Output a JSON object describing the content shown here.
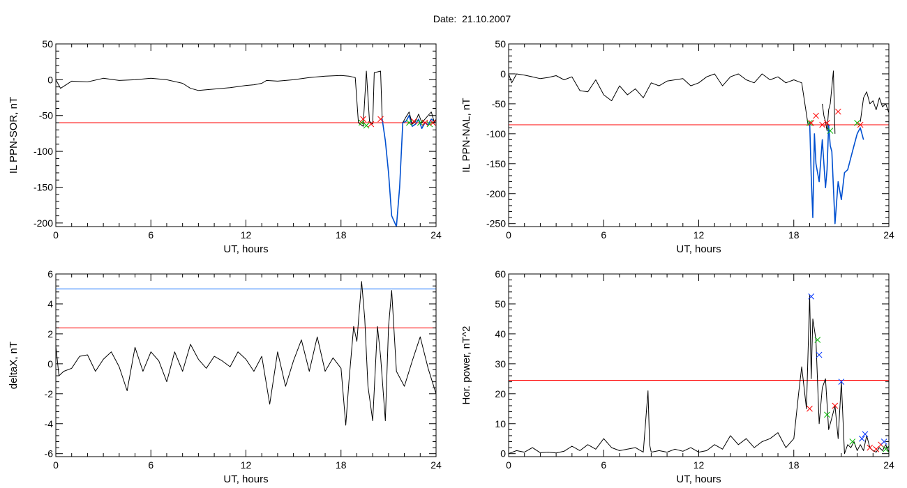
{
  "title": "Date:  21.10.2007",
  "colors": {
    "trace": "#000000",
    "threshold_red": "#ff0000",
    "threshold_blue": "#0066ff",
    "segment_blue": "#0050d0",
    "marker_green": "#00b800",
    "marker_red": "#ff0000",
    "marker_blue": "#0033ff"
  },
  "chart_data": [
    {
      "id": "sor",
      "type": "line",
      "xlabel": "UT, hours",
      "ylabel": "IL PPN-SOR, nT",
      "xlim": [
        0,
        24
      ],
      "ylim": [
        -205,
        50
      ],
      "xticks": [
        0,
        6,
        12,
        18,
        24
      ],
      "xtick_labels": [
        "0",
        "6",
        "12",
        "18",
        "24"
      ],
      "yticks": [
        50,
        0,
        -50,
        -100,
        -150,
        -200
      ],
      "ytick_labels": [
        "50",
        "0",
        "-50",
        "-100",
        "-150",
        "-200"
      ],
      "grid": false,
      "series": [
        {
          "style": "black",
          "x": [
            0,
            0.3,
            1,
            2,
            3,
            4,
            5,
            6,
            7,
            8,
            8.5,
            9,
            9.5,
            10,
            11,
            12,
            12.5,
            13,
            13.3,
            14,
            15,
            16,
            17,
            18,
            18.5,
            18.9,
            19.1,
            19.4,
            19.6,
            19.8,
            20,
            20.1,
            20.3,
            20.5,
            20.6
          ],
          "y": [
            0,
            -12,
            -2,
            -3,
            2,
            -1,
            0,
            2,
            0,
            -5,
            -12,
            -15,
            -14,
            -13,
            -11,
            -8,
            -7,
            -5,
            -1,
            -2,
            0,
            3,
            5,
            6,
            5,
            3,
            -60,
            -65,
            12,
            -58,
            -62,
            10,
            11,
            12,
            -55
          ]
        },
        {
          "style": "blue",
          "x": [
            20.6,
            20.8,
            21,
            21.2,
            21.5,
            21.7,
            21.9,
            22.1,
            22.3,
            22.5,
            22.7,
            22.9,
            23.1,
            23.3,
            23.5,
            23.7,
            23.9
          ],
          "y": [
            -55,
            -85,
            -130,
            -190,
            -205,
            -150,
            -60,
            -58,
            -50,
            -65,
            -62,
            -55,
            -68,
            -60,
            -63,
            -55,
            -58
          ]
        },
        {
          "style": "black",
          "x": [
            21.9,
            22.1,
            22.3,
            22.5,
            22.7,
            22.9,
            23.1,
            23.3,
            23.5,
            23.7,
            23.9,
            24
          ],
          "y": [
            -60,
            -52,
            -45,
            -62,
            -58,
            -48,
            -60,
            -55,
            -50,
            -45,
            -60,
            -55
          ]
        }
      ],
      "thresholds": [
        {
          "y": -60,
          "style": "red"
        }
      ],
      "markers": [
        {
          "x": 19.3,
          "y": -60,
          "color": "green"
        },
        {
          "x": 19.6,
          "y": -64,
          "color": "green"
        },
        {
          "x": 19.4,
          "y": -55,
          "color": "red"
        },
        {
          "x": 19.9,
          "y": -62,
          "color": "red"
        },
        {
          "x": 20.5,
          "y": -55,
          "color": "red"
        },
        {
          "x": 22.3,
          "y": -60,
          "color": "green"
        },
        {
          "x": 22.6,
          "y": -58,
          "color": "red"
        },
        {
          "x": 23.0,
          "y": -60,
          "color": "green"
        },
        {
          "x": 23.3,
          "y": -60,
          "color": "red"
        },
        {
          "x": 23.6,
          "y": -62,
          "color": "green"
        },
        {
          "x": 23.8,
          "y": -60,
          "color": "red"
        }
      ]
    },
    {
      "id": "nal",
      "type": "line",
      "xlabel": "UT, hours",
      "ylabel": "IL PPN-NAL, nT",
      "xlim": [
        0,
        24
      ],
      "ylim": [
        -255,
        50
      ],
      "xticks": [
        0,
        6,
        12,
        18,
        24
      ],
      "xtick_labels": [
        "0",
        "6",
        "12",
        "18",
        "24"
      ],
      "yticks": [
        50,
        0,
        -50,
        -100,
        -150,
        -200,
        -250
      ],
      "ytick_labels": [
        "50",
        "0",
        "-50",
        "-100",
        "-150",
        "-200",
        "-250"
      ],
      "grid": false,
      "series": [
        {
          "style": "black",
          "x": [
            0,
            0.2,
            0.5,
            1,
            1.5,
            2,
            2.5,
            3,
            3.5,
            4,
            4.5,
            5,
            5.5,
            6,
            6.5,
            7,
            7.5,
            8,
            8.5,
            9,
            9.5,
            10,
            10.5,
            11,
            11.5,
            12,
            12.5,
            13,
            13.5,
            14,
            14.5,
            15,
            15.5,
            16,
            16.5,
            17,
            17.5,
            18,
            18.5,
            18.9
          ],
          "y": [
            0,
            -15,
            0,
            -2,
            -5,
            -8,
            -6,
            -3,
            -10,
            -5,
            -28,
            -30,
            -10,
            -35,
            -45,
            -20,
            -35,
            -25,
            -40,
            -15,
            -20,
            -12,
            -10,
            -8,
            -20,
            -15,
            -5,
            0,
            -20,
            -5,
            0,
            -10,
            -15,
            0,
            -10,
            -5,
            -15,
            -10,
            -15,
            -85
          ]
        },
        {
          "style": "blue",
          "x": [
            19.0,
            19.1,
            19.2,
            19.3,
            19.4,
            19.6,
            19.8,
            20,
            20.1,
            20.2,
            20.3,
            20.4,
            20.6,
            20.8,
            21,
            21.2,
            21.4,
            21.6,
            21.8,
            22,
            22.2,
            22.4
          ],
          "y": [
            -80,
            -170,
            -240,
            -100,
            -150,
            -180,
            -110,
            -190,
            -160,
            -85,
            -120,
            -130,
            -250,
            -180,
            -210,
            -165,
            -160,
            -140,
            -120,
            -100,
            -90,
            -110
          ]
        },
        {
          "style": "black",
          "x": [
            19.8,
            19.9,
            20.0,
            20.1,
            20.2,
            20.3,
            20.5,
            20.6
          ],
          "y": [
            -50,
            -70,
            -80,
            -95,
            -60,
            -50,
            5,
            -100
          ]
        },
        {
          "style": "black",
          "x": [
            22.2,
            22.4,
            22.6,
            22.8,
            23,
            23.2,
            23.4,
            23.6,
            23.8,
            24
          ],
          "y": [
            -80,
            -40,
            -30,
            -50,
            -45,
            -60,
            -40,
            -55,
            -50,
            -65
          ]
        }
      ],
      "thresholds": [
        {
          "y": -85,
          "style": "red"
        }
      ],
      "markers": [
        {
          "x": 19.0,
          "y": -82,
          "color": "green"
        },
        {
          "x": 19.1,
          "y": -82,
          "color": "red"
        },
        {
          "x": 19.4,
          "y": -70,
          "color": "red"
        },
        {
          "x": 19.8,
          "y": -85,
          "color": "red"
        },
        {
          "x": 20.1,
          "y": -82,
          "color": "red"
        },
        {
          "x": 20.3,
          "y": -95,
          "color": "green"
        },
        {
          "x": 20.8,
          "y": -63,
          "color": "red"
        },
        {
          "x": 22.0,
          "y": -82,
          "color": "green"
        },
        {
          "x": 22.2,
          "y": -85,
          "color": "red"
        }
      ]
    },
    {
      "id": "deltax",
      "type": "line",
      "xlabel": "UT, hours",
      "ylabel": "deltaX, nT",
      "xlim": [
        0,
        24
      ],
      "ylim": [
        -6.2,
        6
      ],
      "xticks": [
        0,
        6,
        12,
        18,
        24
      ],
      "xtick_labels": [
        "0",
        "6",
        "12",
        "18",
        "24"
      ],
      "yticks": [
        6,
        4,
        2,
        0,
        -2,
        -4,
        -6
      ],
      "ytick_labels": [
        "6",
        "4",
        "2",
        "0",
        "-2",
        "-4",
        "-6"
      ],
      "grid": false,
      "series": [
        {
          "style": "black",
          "x": [
            0,
            0.2,
            0.5,
            1,
            1.5,
            2,
            2.5,
            3,
            3.5,
            4,
            4.5,
            5,
            5.5,
            6,
            6.5,
            7,
            7.5,
            8,
            8.5,
            9,
            9.5,
            10,
            10.5,
            11,
            11.5,
            12,
            12.5,
            13,
            13.5,
            14,
            14.5,
            15,
            15.5,
            16,
            16.5,
            17,
            17.5,
            18,
            18.3,
            18.5,
            18.8,
            19,
            19.3,
            19.5,
            19.7,
            20,
            20.3,
            20.5,
            20.8,
            21,
            21.2,
            21.5,
            22,
            22.5,
            23,
            23.5,
            24
          ],
          "y": [
            1.2,
            -0.8,
            -0.5,
            -0.3,
            0.5,
            0.6,
            -0.5,
            0.3,
            0.8,
            -0.2,
            -1.8,
            1.1,
            -0.5,
            0.8,
            0.2,
            -1.2,
            0.8,
            -0.5,
            1.3,
            0.3,
            -0.3,
            0.5,
            0.2,
            -0.2,
            0.8,
            0.3,
            -0.5,
            0.5,
            -2.7,
            0.8,
            -1.5,
            0.2,
            1.6,
            -0.5,
            1.8,
            -0.5,
            0.4,
            -0.3,
            -4.1,
            -1.2,
            2.5,
            1.5,
            5.5,
            3.0,
            -1.5,
            -3.8,
            2.5,
            0.5,
            -3.8,
            2.5,
            4.9,
            -0.5,
            -1.5,
            0.2,
            1.8,
            -0.3,
            -2.0
          ]
        }
      ],
      "thresholds": [
        {
          "y": 5.0,
          "style": "blue"
        },
        {
          "y": 2.4,
          "style": "red"
        }
      ],
      "markers": []
    },
    {
      "id": "hpower",
      "type": "line",
      "xlabel": "UT, hours",
      "ylabel": "Hor. power, nT^2",
      "xlim": [
        0,
        24
      ],
      "ylim": [
        -1,
        60
      ],
      "xticks": [
        0,
        6,
        12,
        18,
        24
      ],
      "xtick_labels": [
        "0",
        "6",
        "12",
        "18",
        "24"
      ],
      "yticks": [
        60,
        50,
        40,
        30,
        20,
        10,
        0
      ],
      "ytick_labels": [
        "60",
        "50",
        "40",
        "30",
        "20",
        "10",
        "0"
      ],
      "grid": false,
      "series": [
        {
          "style": "black",
          "x": [
            0,
            0.5,
            1,
            1.5,
            2,
            2.5,
            3,
            3.5,
            4,
            4.5,
            5,
            5.5,
            6,
            6.5,
            7,
            7.5,
            8,
            8.5,
            8.8,
            8.9,
            9.0,
            9.5,
            10,
            10.5,
            11,
            11.5,
            12,
            12.5,
            13,
            13.5,
            14,
            14.5,
            15,
            15.5,
            16,
            16.5,
            17,
            17.5,
            18,
            18.3,
            18.5,
            18.8,
            19,
            19.1,
            19.2,
            19.4,
            19.6,
            19.8,
            20,
            20.2,
            20.4,
            20.6,
            20.8,
            21,
            21.2,
            21.4,
            21.6,
            21.8,
            22,
            22.2,
            22.4,
            22.6,
            22.8,
            23,
            23.2,
            23.4,
            23.6,
            23.8,
            24
          ],
          "y": [
            0,
            1,
            0.5,
            2,
            0.3,
            0.5,
            0.2,
            0.8,
            2.5,
            1,
            3,
            1.5,
            5,
            2,
            1,
            1.5,
            2,
            0.5,
            21,
            3,
            0.5,
            1,
            0.5,
            1.5,
            0.8,
            2,
            0.5,
            1,
            3,
            1.5,
            6,
            3,
            5,
            2,
            4,
            5,
            7,
            2,
            5,
            20,
            29,
            15,
            53,
            25,
            45,
            38,
            10,
            22,
            25,
            8,
            12,
            16,
            5,
            24,
            0,
            3,
            2,
            4,
            1,
            3,
            1,
            6,
            2,
            1,
            0.5,
            2,
            1,
            3,
            0.5
          ]
        }
      ],
      "thresholds": [
        {
          "y": 24.5,
          "style": "red"
        }
      ],
      "markers": [
        {
          "x": 19.1,
          "y": 52.5,
          "color": "blue"
        },
        {
          "x": 19.0,
          "y": 15,
          "color": "red"
        },
        {
          "x": 19.5,
          "y": 38,
          "color": "green"
        },
        {
          "x": 19.6,
          "y": 33,
          "color": "blue"
        },
        {
          "x": 20.1,
          "y": 13,
          "color": "green"
        },
        {
          "x": 20.6,
          "y": 16,
          "color": "red"
        },
        {
          "x": 21.0,
          "y": 24,
          "color": "blue"
        },
        {
          "x": 21.7,
          "y": 4,
          "color": "green"
        },
        {
          "x": 22.3,
          "y": 5,
          "color": "blue"
        },
        {
          "x": 22.5,
          "y": 6.5,
          "color": "blue"
        },
        {
          "x": 22.8,
          "y": 2,
          "color": "red"
        },
        {
          "x": 23.2,
          "y": 1.5,
          "color": "red"
        },
        {
          "x": 23.5,
          "y": 3,
          "color": "red"
        },
        {
          "x": 23.7,
          "y": 4,
          "color": "blue"
        },
        {
          "x": 23.8,
          "y": 1.5,
          "color": "green"
        }
      ]
    }
  ]
}
